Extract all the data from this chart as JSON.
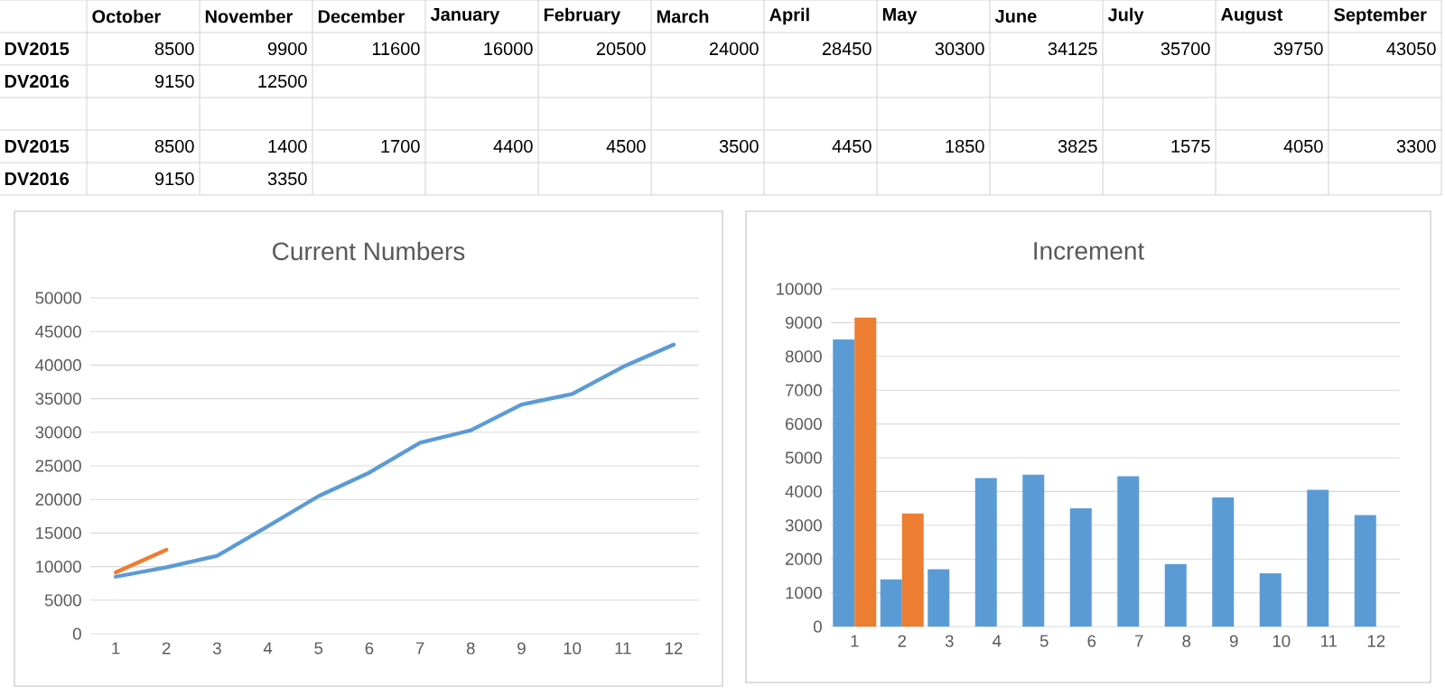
{
  "chart_data": [
    {
      "type": "other",
      "categories": [
        "October",
        "November",
        "December",
        "January",
        "February",
        "March",
        "April",
        "May",
        "June",
        "July",
        "August",
        "September"
      ],
      "series": [
        {
          "name": "DV2015",
          "values": [
            8500,
            9900,
            11600,
            16000,
            20500,
            24000,
            28450,
            30300,
            34125,
            35700,
            39750,
            43050
          ],
          "value_labels": [
            "8500",
            "9900",
            "11600",
            "16000",
            "20500",
            "24000",
            "28450",
            "30300",
            "34125",
            "35700",
            "39750",
            "43050"
          ]
        },
        {
          "name": "DV2016",
          "values": [
            9150,
            12500,
            null,
            null,
            null,
            null,
            null,
            null,
            null,
            null,
            null,
            null
          ],
          "value_labels": [
            "9150",
            "12500",
            null,
            null,
            null,
            null,
            null,
            null,
            null,
            null,
            null,
            null
          ]
        },
        {
          "name": "DV2015",
          "values": [
            8500,
            1400,
            1700,
            4400,
            4500,
            3500,
            4450,
            1850,
            3825,
            1575,
            4050,
            3300
          ],
          "value_labels": [
            "8500",
            "1400",
            "1700",
            "4400",
            "4500",
            "3500",
            "4450",
            "1850",
            "3825",
            "1575",
            "4050",
            "3300"
          ]
        },
        {
          "name": "DV2016",
          "values": [
            9150,
            3350,
            null,
            null,
            null,
            null,
            null,
            null,
            null,
            null,
            null,
            null
          ],
          "value_labels": [
            "9150",
            "3350",
            null,
            null,
            null,
            null,
            null,
            null,
            null,
            null,
            null,
            null
          ]
        }
      ]
    },
    {
      "type": "line",
      "title": "Current Numbers",
      "categories": [
        "1",
        "2",
        "3",
        "4",
        "5",
        "6",
        "7",
        "8",
        "9",
        "10",
        "11",
        "12"
      ],
      "series": [
        {
          "color": "#5b9bd5",
          "values": [
            8500,
            9900,
            11600,
            16000,
            20500,
            24000,
            28450,
            30300,
            34125,
            35700,
            39750,
            43050
          ]
        },
        {
          "color": "#ed7d31",
          "values": [
            9150,
            12500,
            null,
            null,
            null,
            null,
            null,
            null,
            null,
            null,
            null,
            null
          ]
        }
      ],
      "ylim": [
        0,
        50000
      ],
      "yticks": [
        0,
        5000,
        10000,
        15000,
        20000,
        25000,
        30000,
        35000,
        40000,
        45000,
        50000
      ],
      "grid": "y"
    },
    {
      "type": "bar",
      "title": "Increment",
      "categories": [
        "1",
        "2",
        "3",
        "4",
        "5",
        "6",
        "7",
        "8",
        "9",
        "10",
        "11",
        "12"
      ],
      "series": [
        {
          "color": "#5b9bd5",
          "values": [
            8500,
            1400,
            1700,
            4400,
            4500,
            3500,
            4450,
            1850,
            3825,
            1575,
            4050,
            3300
          ]
        },
        {
          "color": "#ed7d31",
          "values": [
            9150,
            3350,
            null,
            null,
            null,
            null,
            null,
            null,
            null,
            null,
            null,
            null
          ]
        }
      ],
      "ylim": [
        0,
        10000
      ],
      "yticks": [
        0,
        1000,
        2000,
        3000,
        4000,
        5000,
        6000,
        7000,
        8000,
        9000,
        10000
      ],
      "grid": "y"
    }
  ]
}
